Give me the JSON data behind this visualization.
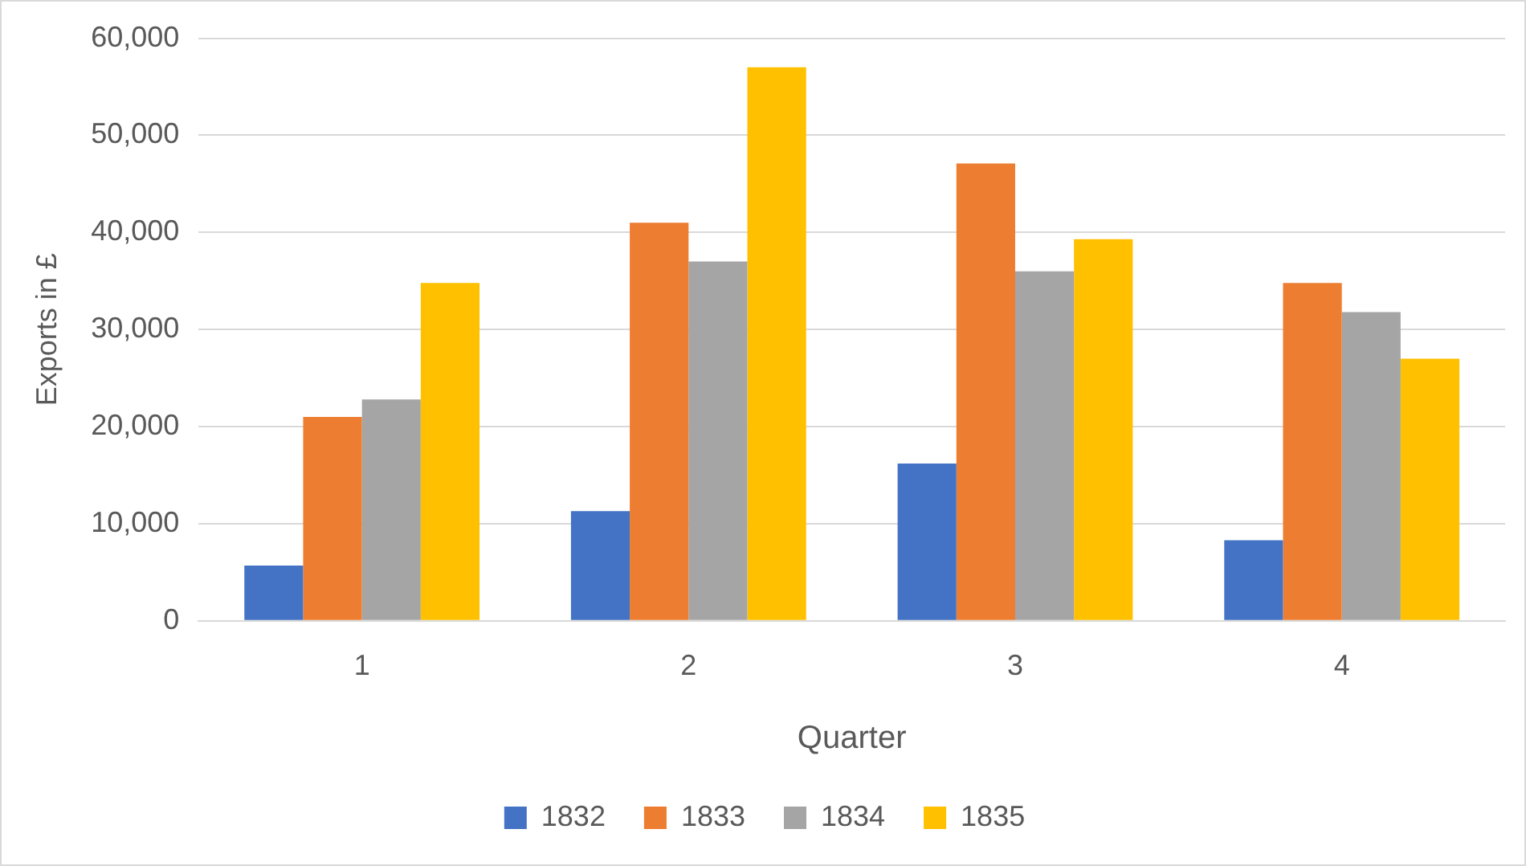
{
  "chart_data": {
    "type": "bar",
    "xlabel": "Quarter",
    "ylabel": "Exports in £",
    "categories": [
      "1",
      "2",
      "3",
      "4"
    ],
    "series": [
      {
        "name": "1832",
        "color": "#4472c4",
        "values": [
          5700,
          11300,
          16200,
          8300
        ]
      },
      {
        "name": "1833",
        "color": "#ed7d31",
        "values": [
          21000,
          41000,
          47100,
          34800
        ]
      },
      {
        "name": "1834",
        "color": "#a5a5a5",
        "values": [
          22800,
          37000,
          36000,
          31800
        ]
      },
      {
        "name": "1835",
        "color": "#ffc000",
        "values": [
          34800,
          57000,
          39300,
          27000
        ]
      }
    ],
    "ylim": [
      0,
      60000
    ],
    "yticks": [
      {
        "value": 0,
        "label": "0"
      },
      {
        "value": 10000,
        "label": "10,000"
      },
      {
        "value": 20000,
        "label": "20,000"
      },
      {
        "value": 30000,
        "label": "30,000"
      },
      {
        "value": 40000,
        "label": "40,000"
      },
      {
        "value": 50000,
        "label": "50,000"
      },
      {
        "value": 60000,
        "label": "60,000"
      }
    ],
    "grid": "y",
    "legend": "bottom"
  }
}
